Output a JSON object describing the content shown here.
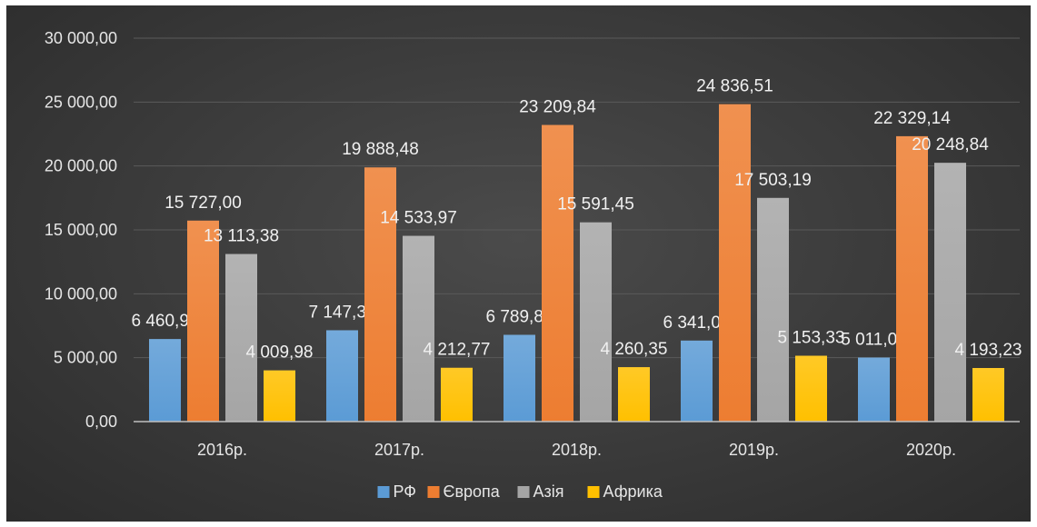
{
  "chart_data": {
    "type": "bar",
    "categories": [
      "2016р.",
      "2017р.",
      "2018р.",
      "2019р.",
      "2020р."
    ],
    "series": [
      {
        "name": "РФ",
        "color": "#5b9bd5",
        "values": [
          6460.94,
          7147.3,
          6789.81,
          6341.07,
          5011.05
        ],
        "labels": [
          "6 460,94",
          "7 147,30",
          "6 789,81",
          "6 341,07",
          "5 011,05"
        ]
      },
      {
        "name": "Європа",
        "color": "#ed7d31",
        "values": [
          15727.0,
          19888.48,
          23209.84,
          24836.51,
          22329.14
        ],
        "labels": [
          "15 727,00",
          "19 888,48",
          "23 209,84",
          "24 836,51",
          "22 329,14"
        ]
      },
      {
        "name": "Азія",
        "color": "#a5a5a5",
        "values": [
          13113.38,
          14533.97,
          15591.45,
          17503.19,
          20248.84
        ],
        "labels": [
          "13 113,38",
          "14 533,97",
          "15 591,45",
          "17 503,19",
          "20 248,84"
        ]
      },
      {
        "name": "Африка",
        "color": "#ffc000",
        "values": [
          4009.98,
          4212.77,
          4260.35,
          5153.33,
          4193.23
        ],
        "labels": [
          "4 009,98",
          "4 212,77",
          "4 260,35",
          "5 153,33",
          "4 193,23"
        ]
      }
    ],
    "ylim": [
      0,
      30000
    ],
    "yticks": [
      0,
      5000,
      10000,
      15000,
      20000,
      25000,
      30000
    ],
    "ytick_labels": [
      "0,00",
      "5 000,00",
      "10 000,00",
      "15 000,00",
      "20 000,00",
      "25 000,00",
      "30 000,00"
    ],
    "grid": true,
    "legend_position": "bottom",
    "title": "",
    "xlabel": "",
    "ylabel": ""
  }
}
